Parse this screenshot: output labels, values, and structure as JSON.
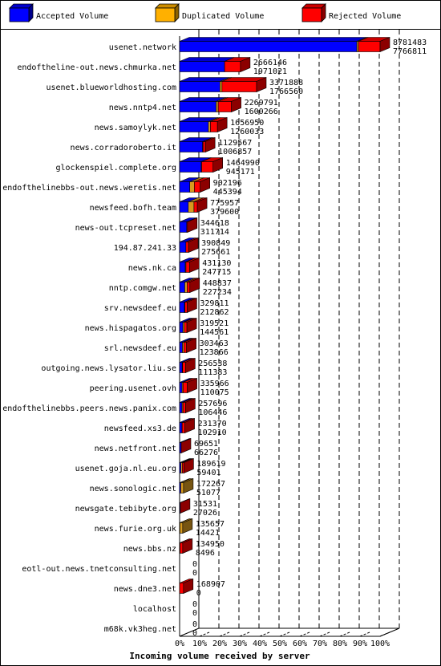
{
  "chart_data": {
    "type": "bar",
    "orientation": "horizontal",
    "stacked": true,
    "xlabel": "Incoming volume received by server",
    "x_ticks": [
      "0%",
      "10%",
      "20%",
      "30%",
      "40%",
      "50%",
      "60%",
      "70%",
      "80%",
      "90%",
      "100%"
    ],
    "xlim": [
      0,
      100
    ],
    "max_total": 8781483,
    "legend": {
      "placement": "top",
      "entries": [
        {
          "name": "Accepted Volume",
          "color": "#0000ff"
        },
        {
          "name": "Duplicated Volume",
          "color": "#ffb000"
        },
        {
          "name": "Rejected Volume",
          "color": "#ff0000"
        }
      ]
    },
    "servers": [
      {
        "name": "usenet.network",
        "total_label": "8781483",
        "accepted_label": "7766811",
        "accepted": 7766811,
        "duplicated": 70000,
        "rejected": 944672
      },
      {
        "name": "endoftheline-out.news.chmurka.net",
        "total_label": "2666146",
        "accepted_label": "1971021",
        "accepted": 1971021,
        "duplicated": 0,
        "rejected": 695125
      },
      {
        "name": "usenet.blueworldhosting.com",
        "total_label": "3371888",
        "accepted_label": "1766560",
        "accepted": 1766560,
        "duplicated": 90000,
        "rejected": 1515328
      },
      {
        "name": "news.nntp4.net",
        "total_label": "2269791",
        "accepted_label": "1600266",
        "accepted": 1600266,
        "duplicated": 90000,
        "rejected": 579525
      },
      {
        "name": "news.samoylyk.net",
        "total_label": "1656950",
        "accepted_label": "1260033",
        "accepted": 1260033,
        "duplicated": 90000,
        "rejected": 306917
      },
      {
        "name": "news.corradoroberto.it",
        "total_label": "1129567",
        "accepted_label": "1006857",
        "accepted": 1006857,
        "duplicated": 20000,
        "rejected": 102710
      },
      {
        "name": "glockenspiel.complete.org",
        "total_label": "1464990",
        "accepted_label": "945171",
        "accepted": 945171,
        "duplicated": 20000,
        "rejected": 499819
      },
      {
        "name": "endofthelinebbs-out.news.weretis.net",
        "total_label": "902196",
        "accepted_label": "445394",
        "accepted": 445394,
        "duplicated": 200000,
        "rejected": 256802
      },
      {
        "name": "newsfeed.bofh.team",
        "total_label": "775957",
        "accepted_label": "379600",
        "accepted": 379600,
        "duplicated": 250000,
        "rejected": 146357
      },
      {
        "name": "news-out.tcpreset.net",
        "total_label": "344618",
        "accepted_label": "311714",
        "accepted": 311714,
        "duplicated": 0,
        "rejected": 32904
      },
      {
        "name": "194.87.241.33",
        "total_label": "390849",
        "accepted_label": "275661",
        "accepted": 275661,
        "duplicated": 0,
        "rejected": 115188
      },
      {
        "name": "news.nk.ca",
        "total_label": "431130",
        "accepted_label": "247715",
        "accepted": 247715,
        "duplicated": 30000,
        "rejected": 153415
      },
      {
        "name": "nntp.comgw.net",
        "total_label": "448837",
        "accepted_label": "227234",
        "accepted": 227234,
        "duplicated": 100000,
        "rejected": 121603
      },
      {
        "name": "srv.newsdeef.eu",
        "total_label": "329811",
        "accepted_label": "212862",
        "accepted": 212862,
        "duplicated": 20000,
        "rejected": 96949
      },
      {
        "name": "news.hispagatos.org",
        "total_label": "319521",
        "accepted_label": "144561",
        "accepted": 144561,
        "duplicated": 60000,
        "rejected": 114960
      },
      {
        "name": "srl.newsdeef.eu",
        "total_label": "303463",
        "accepted_label": "123866",
        "accepted": 123866,
        "duplicated": 60000,
        "rejected": 119597
      },
      {
        "name": "outgoing.news.lysator.liu.se",
        "total_label": "256538",
        "accepted_label": "111383",
        "accepted": 111383,
        "duplicated": 20000,
        "rejected": 125155
      },
      {
        "name": "peering.usenet.ovh",
        "total_label": "335966",
        "accepted_label": "110075",
        "accepted": 110075,
        "duplicated": 40000,
        "rejected": 185891
      },
      {
        "name": "endofthelinebbs.peers.news.panix.com",
        "total_label": "257696",
        "accepted_label": "106446",
        "accepted": 106446,
        "duplicated": 40000,
        "rejected": 111250
      },
      {
        "name": "newsfeed.xs3.de",
        "total_label": "231370",
        "accepted_label": "102910",
        "accepted": 102910,
        "duplicated": 10000,
        "rejected": 118460
      },
      {
        "name": "news.netfront.net",
        "total_label": "69651",
        "accepted_label": "66276",
        "accepted": 66276,
        "duplicated": 0,
        "rejected": 3375
      },
      {
        "name": "usenet.goja.nl.eu.org",
        "total_label": "189619",
        "accepted_label": "59401",
        "accepted": 59401,
        "duplicated": 60000,
        "rejected": 70218
      },
      {
        "name": "news.sonologic.net",
        "total_label": "172267",
        "accepted_label": "51077",
        "accepted": 51077,
        "duplicated": 121190,
        "rejected": 0
      },
      {
        "name": "newsgate.tebibyte.org",
        "total_label": "31531",
        "accepted_label": "27026",
        "accepted": 27026,
        "duplicated": 0,
        "rejected": 4505
      },
      {
        "name": "news.furie.org.uk",
        "total_label": "135657",
        "accepted_label": "14421",
        "accepted": 14421,
        "duplicated": 121236,
        "rejected": 0
      },
      {
        "name": "news.bbs.nz",
        "total_label": "134950",
        "accepted_label": "8496",
        "accepted": 8496,
        "duplicated": 10000,
        "rejected": 116454
      },
      {
        "name": "eotl-out.news.tnetconsulting.net",
        "total_label": "0",
        "accepted_label": "0",
        "accepted": 0,
        "duplicated": 0,
        "rejected": 0
      },
      {
        "name": "news.dne3.net",
        "total_label": "168907",
        "accepted_label": "0",
        "accepted": 0,
        "duplicated": 0,
        "rejected": 168907
      },
      {
        "name": "localhost",
        "total_label": "0",
        "accepted_label": "0",
        "accepted": 0,
        "duplicated": 0,
        "rejected": 0
      },
      {
        "name": "m68k.vk3heg.net",
        "total_label": "0",
        "accepted_label": "0",
        "accepted": 0,
        "duplicated": 0,
        "rejected": 0
      }
    ]
  }
}
